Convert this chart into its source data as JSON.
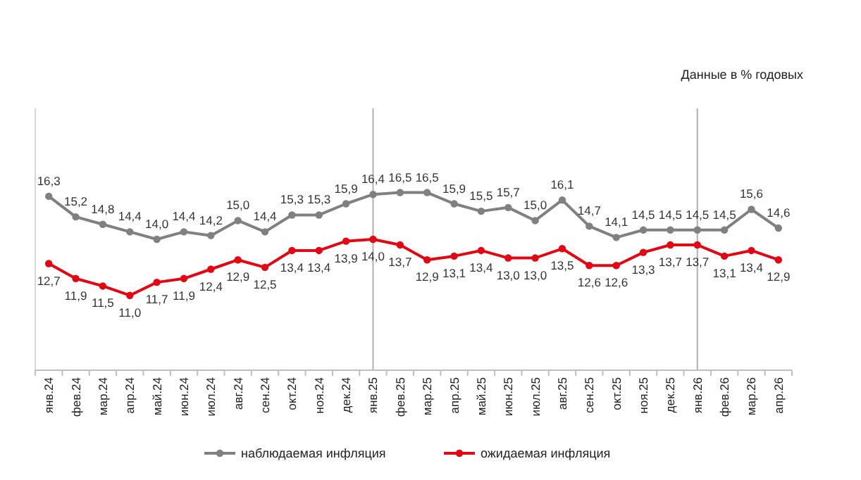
{
  "chart_data": {
    "type": "line",
    "subtitle": "Данные в % годовых",
    "categories": [
      "янв.24",
      "фев.24",
      "мар.24",
      "апр.24",
      "май.24",
      "июн.24",
      "июл.24",
      "авг.24",
      "сен.24",
      "окт.24",
      "ноя.24",
      "дек.24",
      "янв.25",
      "фев.25",
      "мар.25",
      "апр.25",
      "май.25",
      "июн.25",
      "июл.25",
      "авг.25",
      "сен.25",
      "окт.25",
      "ноя.25",
      "дек.25",
      "янв.26",
      "фев.26",
      "мар.26",
      "апр.26"
    ],
    "series": [
      {
        "name": "наблюдаемая инфляция",
        "color": "#808080",
        "values": [
          16.3,
          15.2,
          14.8,
          14.4,
          14.0,
          14.4,
          14.2,
          15.0,
          14.4,
          15.3,
          15.3,
          15.9,
          16.4,
          16.5,
          16.5,
          15.9,
          15.5,
          15.7,
          15.0,
          16.1,
          14.7,
          14.1,
          14.5,
          14.5,
          14.5,
          14.5,
          15.6,
          14.6
        ],
        "value_labels": [
          "16,3",
          "15,2",
          "14,8",
          "14,4",
          "14,0",
          "14,4",
          "14,2",
          "15,0",
          "14,4",
          "15,3",
          "15,3",
          "15,9",
          "16,4",
          "16,5",
          "16,5",
          "15,9",
          "15,5",
          "15,7",
          "15,0",
          "16,1",
          "14,7",
          "14,1",
          "14,5",
          "14,5",
          "14,5",
          "14,5",
          "15,6",
          "14,6"
        ]
      },
      {
        "name": "ожидаемая инфляция",
        "color": "#e30613",
        "values": [
          12.7,
          11.9,
          11.5,
          11.0,
          11.7,
          11.9,
          12.4,
          12.9,
          12.5,
          13.4,
          13.4,
          13.9,
          14.0,
          13.7,
          12.9,
          13.1,
          13.4,
          13.0,
          13.0,
          13.5,
          12.6,
          12.6,
          13.3,
          13.7,
          13.7,
          13.1,
          13.4,
          12.9
        ],
        "value_labels": [
          "12,7",
          "11,9",
          "11,5",
          "11,0",
          "11,7",
          "11,9",
          "12,4",
          "12,9",
          "12,5",
          "13,4",
          "13,4",
          "13,9",
          "14,0",
          "13,7",
          "12,9",
          "13,1",
          "13,4",
          "13,0",
          "13,0",
          "13,5",
          "12,6",
          "12,6",
          "13,3",
          "13,7",
          "13,7",
          "13,1",
          "13,4",
          "12,9"
        ]
      }
    ],
    "ylim": [
      7,
      21
    ],
    "tick_labels": "x",
    "marker": "circle",
    "line_style": "solid",
    "legend": "bottom",
    "ref_lines": [
      {
        "axis": "x",
        "value": "янв.25",
        "color": "#b0b0b0"
      },
      {
        "axis": "x",
        "value": "янв.26",
        "color": "#b0b0b0"
      }
    ]
  }
}
